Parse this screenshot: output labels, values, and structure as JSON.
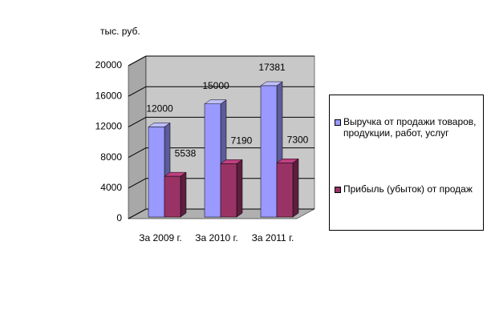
{
  "chart_data": {
    "type": "bar3d",
    "y_label": "тыс. руб.",
    "categories": [
      "За 2009 г.",
      "За 2010 г.",
      "За 2011 г."
    ],
    "series": [
      {
        "name": "Выручка от продажи товаров, продукции, работ, услуг",
        "color": "#9999ff",
        "values": [
          12000,
          15000,
          17381
        ]
      },
      {
        "name": "Прибыль (убыток) от продаж",
        "color": "#993366",
        "values": [
          5538,
          7190,
          7300
        ]
      }
    ],
    "ylim": [
      0,
      20000
    ],
    "yticks": [
      0,
      4000,
      8000,
      12000,
      16000,
      20000
    ],
    "grid": true,
    "legend": "right"
  }
}
